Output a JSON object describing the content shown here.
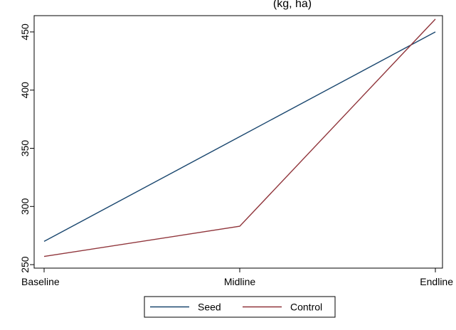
{
  "chart_data": {
    "type": "line",
    "title": "(kg, ha)",
    "xlabel": "",
    "ylabel": "",
    "categories": [
      "Baseline",
      "Midline",
      "Endline"
    ],
    "series": [
      {
        "name": "Seed",
        "values": [
          270,
          360,
          450
        ],
        "color": "#1a476f"
      },
      {
        "name": "Control",
        "values": [
          257,
          283,
          461
        ],
        "color": "#90353b"
      }
    ],
    "ylim": [
      247,
      464
    ],
    "yticks": [
      250,
      300,
      350,
      400,
      450
    ],
    "grid": false,
    "legend": "bottom",
    "background": "#ffffff",
    "plot_background": "#ffffff",
    "outer_background": "#eaf2f3"
  }
}
